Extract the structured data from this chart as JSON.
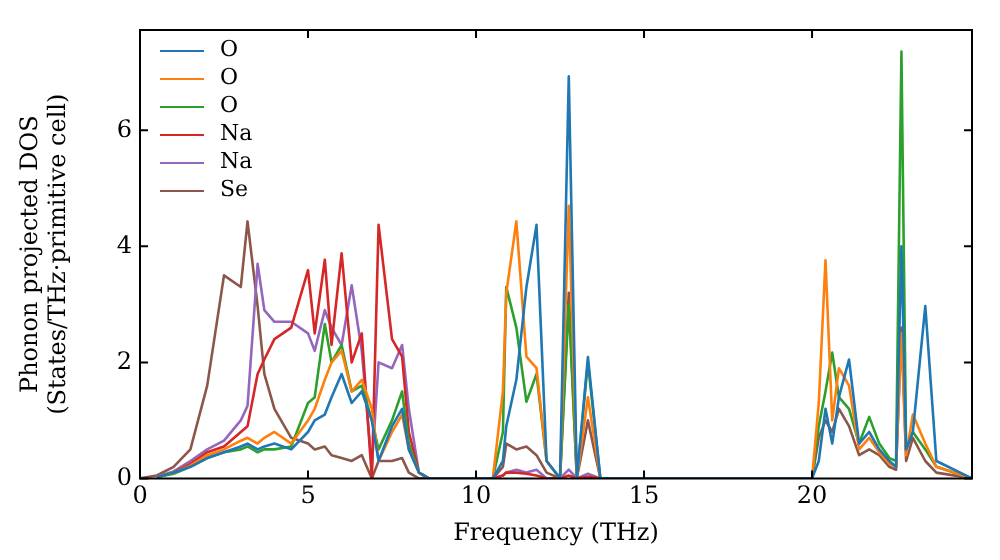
{
  "chart_data": {
    "type": "line",
    "xlabel": "Frequency (THz)",
    "ylabel": "Phonon projected DOS\n(States/THz·primitive cell)",
    "xlim": [
      0,
      24.76
    ],
    "ylim": [
      0,
      7.73
    ],
    "xticks": [
      0,
      5,
      10,
      15,
      20
    ],
    "yticks": [
      0,
      2,
      4,
      6
    ],
    "grid": false,
    "legend": "top left",
    "marker": "none",
    "line_style": "solid",
    "x": [
      0,
      0.5,
      1,
      1.5,
      2,
      2.5,
      3,
      3.2,
      3.5,
      3.7,
      4,
      4.5,
      5,
      5.2,
      5.5,
      5.7,
      6,
      6.3,
      6.6,
      6.9,
      7.1,
      7.5,
      7.8,
      8,
      8.3,
      8.6,
      10.5,
      10.8,
      10.9,
      11.2,
      11.5,
      11.8,
      12.1,
      12.5,
      12.76,
      13.0,
      13.33,
      13.7,
      14,
      20,
      20.2,
      20.4,
      20.6,
      20.8,
      21.1,
      21.4,
      21.7,
      22,
      22.3,
      22.5,
      22.66,
      22.8,
      23,
      23.37,
      23.7,
      24.76
    ],
    "series": [
      {
        "name": "O",
        "color": "#1f77b4",
        "values": [
          null,
          0.02,
          0.1,
          0.2,
          0.35,
          0.45,
          0.55,
          0.6,
          0.5,
          0.55,
          0.6,
          0.5,
          0.8,
          1.0,
          1.1,
          1.4,
          1.8,
          1.3,
          1.5,
          1.0,
          0.3,
          0.9,
          1.2,
          0.5,
          0.1,
          0,
          0,
          0.3,
          0.9,
          1.7,
          3.3,
          4.37,
          0.3,
          0,
          6.93,
          0,
          2.09,
          0,
          0,
          0,
          0.3,
          1.2,
          0.6,
          1.4,
          2.05,
          0.6,
          0.8,
          0.5,
          0.3,
          0.2,
          4.0,
          0.5,
          0.8,
          2.97,
          0.3,
          0
        ]
      },
      {
        "name": "O",
        "color": "#ff7f0e",
        "values": [
          null,
          0.02,
          0.1,
          0.22,
          0.4,
          0.5,
          0.65,
          0.7,
          0.6,
          0.7,
          0.8,
          0.6,
          1.0,
          1.2,
          1.7,
          2.0,
          2.2,
          1.5,
          1.7,
          1.2,
          0.3,
          0.8,
          1.1,
          0.5,
          0.1,
          0,
          0,
          1.5,
          3.19,
          4.43,
          2.1,
          1.9,
          0.3,
          0,
          4.7,
          0,
          1.4,
          0,
          0,
          0,
          1.3,
          3.76,
          1.0,
          1.9,
          1.6,
          0.5,
          0.7,
          0.45,
          0.25,
          0.2,
          2.5,
          0.4,
          1.1,
          0.6,
          0.2,
          0
        ]
      },
      {
        "name": "O",
        "color": "#2ca02c",
        "values": [
          null,
          0.02,
          0.08,
          0.2,
          0.35,
          0.45,
          0.5,
          0.55,
          0.45,
          0.5,
          0.5,
          0.55,
          1.3,
          1.4,
          2.66,
          2.0,
          2.3,
          1.5,
          1.6,
          1.0,
          0.5,
          1.0,
          1.5,
          0.6,
          0.1,
          0,
          0,
          0.8,
          3.3,
          2.6,
          1.32,
          1.8,
          0.3,
          0,
          3.0,
          0,
          2.0,
          0,
          0,
          0,
          0.9,
          1.5,
          2.17,
          1.4,
          1.2,
          0.6,
          1.06,
          0.6,
          0.35,
          0.3,
          7.36,
          0.5,
          0.8,
          0.5,
          0.2,
          0
        ]
      },
      {
        "name": "Na",
        "color": "#d62728",
        "values": [
          null,
          0.02,
          0.1,
          0.25,
          0.45,
          0.55,
          0.8,
          0.9,
          1.8,
          2.05,
          2.4,
          2.6,
          3.59,
          2.5,
          3.77,
          2.3,
          3.88,
          2.0,
          2.5,
          0.0,
          4.37,
          2.4,
          2.1,
          0.8,
          0.1,
          0,
          0,
          0.05,
          0.1,
          0.1,
          0.08,
          0.05,
          0,
          0,
          0.05,
          0,
          0.03,
          0,
          0,
          null,
          null,
          null,
          null,
          null,
          null,
          null,
          null,
          null,
          null,
          null,
          null,
          null,
          null,
          null,
          null,
          null
        ]
      },
      {
        "name": "Na",
        "color": "#9467bd",
        "values": [
          null,
          0.03,
          0.12,
          0.3,
          0.5,
          0.65,
          1.0,
          1.25,
          3.7,
          2.9,
          2.7,
          2.7,
          2.5,
          2.2,
          2.9,
          2.6,
          2.3,
          3.33,
          2.2,
          0.2,
          2.0,
          1.9,
          2.3,
          1.2,
          0.1,
          0,
          0,
          0.05,
          0.1,
          0.15,
          0.1,
          0.15,
          0,
          0,
          0.15,
          0,
          0.08,
          0,
          0,
          null,
          null,
          null,
          null,
          null,
          null,
          null,
          null,
          null,
          null,
          null,
          null,
          null,
          null,
          null,
          null,
          null
        ]
      },
      {
        "name": "Se",
        "color": "#8c564b",
        "values": [
          0,
          0.05,
          0.2,
          0.5,
          1.6,
          3.5,
          3.3,
          4.43,
          2.97,
          1.8,
          1.2,
          0.7,
          0.6,
          0.5,
          0.55,
          0.4,
          0.35,
          0.3,
          0.4,
          0.0,
          0.3,
          0.3,
          0.35,
          0.1,
          0,
          0,
          0,
          0.2,
          0.6,
          0.5,
          0.55,
          0.4,
          0.1,
          0,
          3.2,
          0,
          1.0,
          0,
          0,
          0,
          0.7,
          1.0,
          0.8,
          1.2,
          0.9,
          0.4,
          0.5,
          0.4,
          0.2,
          0.15,
          2.6,
          0.3,
          0.7,
          0.3,
          0.1,
          0
        ]
      }
    ]
  }
}
